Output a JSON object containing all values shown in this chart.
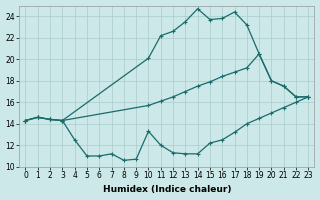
{
  "xlabel": "Humidex (Indice chaleur)",
  "background_color": "#cce8e8",
  "grid_color": "#aacccc",
  "line_color": "#1a6b6b",
  "xlim": [
    -0.5,
    23.5
  ],
  "ylim": [
    10,
    25
  ],
  "xticks": [
    0,
    1,
    2,
    3,
    4,
    5,
    6,
    7,
    8,
    9,
    10,
    11,
    12,
    13,
    14,
    15,
    16,
    17,
    18,
    19,
    20,
    21,
    22,
    23
  ],
  "yticks": [
    10,
    12,
    14,
    16,
    18,
    20,
    22,
    24
  ],
  "line_upper_x": [
    0,
    1,
    2,
    3,
    10,
    11,
    12,
    13,
    14,
    15,
    16,
    17,
    18,
    19,
    20,
    21,
    22,
    23
  ],
  "line_upper_y": [
    14.3,
    14.6,
    14.4,
    14.3,
    20.1,
    22.2,
    22.6,
    23.5,
    24.7,
    23.7,
    23.8,
    24.4,
    23.2,
    20.5,
    18.0,
    17.5,
    16.5,
    16.5
  ],
  "line_mid_x": [
    0,
    1,
    2,
    3,
    10,
    11,
    12,
    13,
    14,
    15,
    16,
    17,
    18,
    19,
    20,
    21,
    22,
    23
  ],
  "line_mid_y": [
    14.3,
    14.6,
    14.4,
    14.3,
    15.7,
    16.1,
    16.5,
    17.0,
    17.5,
    17.9,
    18.4,
    18.8,
    19.2,
    20.5,
    18.0,
    17.5,
    16.5,
    16.5
  ],
  "line_lower_x": [
    0,
    1,
    2,
    3,
    4,
    5,
    6,
    7,
    8,
    9,
    10,
    11,
    12,
    13,
    14,
    15,
    16,
    17,
    18,
    19,
    20,
    21,
    22,
    23
  ],
  "line_lower_y": [
    14.3,
    14.6,
    14.4,
    14.3,
    12.5,
    11.0,
    11.0,
    11.2,
    10.6,
    10.7,
    13.3,
    12.0,
    11.3,
    11.2,
    11.2,
    12.2,
    12.5,
    13.2,
    14.0,
    14.5,
    15.0,
    15.5,
    16.0,
    16.5
  ],
  "marker": "+",
  "markersize": 3,
  "linewidth": 0.9,
  "tick_fontsize": 5.5,
  "xlabel_fontsize": 6.5
}
